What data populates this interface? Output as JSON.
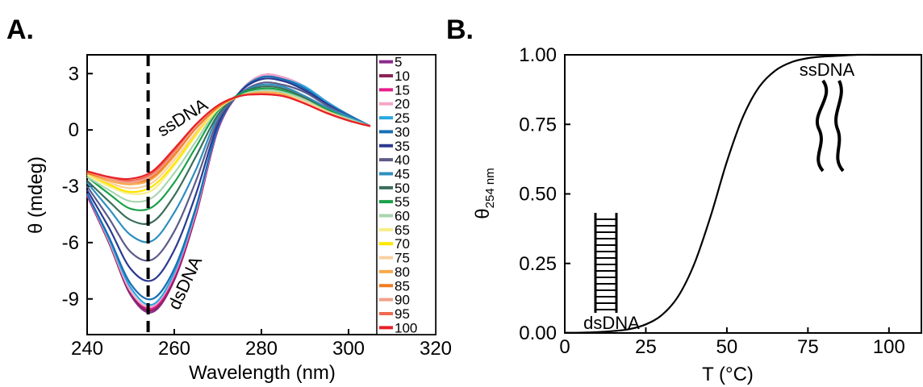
{
  "chart_data": [
    {
      "type": "line",
      "panel_label": "A.",
      "xlabel": "Wavelength (nm)",
      "ylabel": "θ (mdeg)",
      "xlim": [
        240,
        320
      ],
      "xticks": [
        240,
        260,
        280,
        300,
        320
      ],
      "ylim": [
        -10.9,
        4
      ],
      "yticks": [
        3,
        0,
        -3,
        -6,
        -9
      ],
      "vline": 254,
      "legend": "right",
      "annotations": [
        "ssDNA",
        "dsDNA"
      ],
      "x": [
        240,
        245,
        250,
        255,
        260,
        265,
        270,
        275,
        280,
        285,
        290,
        295,
        300,
        305
      ],
      "series": [
        {
          "name": "5",
          "color": "#8b2a8b",
          "values": [
            -3.5,
            -6,
            -8.8,
            -9.7,
            -8,
            -4.5,
            0,
            2,
            2.9,
            2.8,
            2.3,
            1.5,
            0.8,
            0.2
          ]
        },
        {
          "name": "10",
          "color": "#8b2355",
          "values": [
            -3.5,
            -6,
            -8.7,
            -9.6,
            -7.9,
            -4.5,
            0,
            2,
            2.9,
            2.8,
            2.3,
            1.5,
            0.8,
            0.2
          ]
        },
        {
          "name": "15",
          "color": "#e61e8c",
          "values": [
            -3.5,
            -5.9,
            -8.6,
            -9.5,
            -7.8,
            -4.4,
            0,
            2,
            2.9,
            2.8,
            2.3,
            1.5,
            0.8,
            0.2
          ]
        },
        {
          "name": "20",
          "color": "#f4a6c8",
          "values": [
            -3.4,
            -5.9,
            -8.6,
            -9.4,
            -7.7,
            -4.3,
            0.1,
            2,
            2.9,
            2.8,
            2.3,
            1.5,
            0.8,
            0.2
          ]
        },
        {
          "name": "25",
          "color": "#29a8e0",
          "values": [
            -3.4,
            -5.8,
            -8.4,
            -9.3,
            -7.6,
            -4.2,
            0.1,
            2,
            2.8,
            2.7,
            2.3,
            1.5,
            0.8,
            0.2
          ]
        },
        {
          "name": "30",
          "color": "#1a6fb5",
          "values": [
            -3.4,
            -5.7,
            -8.2,
            -9,
            -7.4,
            -4.1,
            0.1,
            2,
            2.8,
            2.7,
            2.2,
            1.4,
            0.8,
            0.2
          ]
        },
        {
          "name": "35",
          "color": "#2b3990",
          "values": [
            -3.2,
            -5.2,
            -7.4,
            -8,
            -6.4,
            -3.4,
            0.3,
            2,
            2.7,
            2.6,
            2.1,
            1.4,
            0.7,
            0.2
          ]
        },
        {
          "name": "40",
          "color": "#5c5c8a",
          "values": [
            -3,
            -4.7,
            -6.5,
            -6.9,
            -5.4,
            -2.7,
            0.5,
            1.9,
            2.5,
            2.4,
            2,
            1.3,
            0.7,
            0.2
          ]
        },
        {
          "name": "45",
          "color": "#2e8fbf",
          "values": [
            -2.8,
            -4.2,
            -5.6,
            -5.9,
            -4.4,
            -2.1,
            0.7,
            1.9,
            2.4,
            2.3,
            1.8,
            1.2,
            0.7,
            0.2
          ]
        },
        {
          "name": "50",
          "color": "#3b6e5a",
          "values": [
            -2.7,
            -3.8,
            -4.8,
            -4.9,
            -3.5,
            -1.4,
            0.8,
            1.9,
            2.3,
            2.2,
            1.7,
            1.1,
            0.6,
            0.2
          ]
        },
        {
          "name": "55",
          "color": "#1aa14a",
          "values": [
            -2.5,
            -3.4,
            -4.2,
            -4.1,
            -2.8,
            -0.9,
            1,
            1.9,
            2.2,
            2.1,
            1.6,
            1.1,
            0.6,
            0.2
          ]
        },
        {
          "name": "60",
          "color": "#a8d5b0",
          "values": [
            -2.5,
            -3.2,
            -3.8,
            -3.6,
            -2.3,
            -0.6,
            1.1,
            1.8,
            2.1,
            2,
            1.6,
            1,
            0.6,
            0.2
          ]
        },
        {
          "name": "65",
          "color": "#f7ee8a",
          "values": [
            -2.4,
            -3,
            -3.4,
            -3.2,
            -1.9,
            -0.3,
            1.1,
            1.8,
            2,
            1.9,
            1.5,
            1,
            0.5,
            0.2
          ]
        },
        {
          "name": "70",
          "color": "#ffe600",
          "values": [
            -2.3,
            -2.9,
            -3.3,
            -3,
            -1.8,
            -0.2,
            1.2,
            1.8,
            2,
            1.9,
            1.5,
            1,
            0.5,
            0.2
          ]
        },
        {
          "name": "75",
          "color": "#fbd0a0",
          "values": [
            -2.3,
            -2.8,
            -3.1,
            -2.8,
            -1.6,
            -0.1,
            1.2,
            1.8,
            2,
            1.9,
            1.5,
            1,
            0.5,
            0.2
          ]
        },
        {
          "name": "80",
          "color": "#f8a94a",
          "values": [
            -2.3,
            -2.7,
            -2.9,
            -2.6,
            -1.4,
            0.1,
            1.2,
            1.8,
            2,
            1.9,
            1.4,
            0.9,
            0.5,
            0.2
          ]
        },
        {
          "name": "85",
          "color": "#f07c22",
          "values": [
            -2.3,
            -2.6,
            -2.8,
            -2.5,
            -1.3,
            0.1,
            1.2,
            1.8,
            1.9,
            1.8,
            1.4,
            0.9,
            0.5,
            0.2
          ]
        },
        {
          "name": "90",
          "color": "#f2a08a",
          "values": [
            -2.2,
            -2.6,
            -2.8,
            -2.4,
            -1.2,
            0.2,
            1.3,
            1.8,
            1.9,
            1.8,
            1.4,
            0.9,
            0.5,
            0.2
          ]
        },
        {
          "name": "95",
          "color": "#ee6a50",
          "values": [
            -2.2,
            -2.5,
            -2.7,
            -2.3,
            -1.1,
            0.3,
            1.3,
            1.8,
            1.9,
            1.8,
            1.4,
            0.9,
            0.5,
            0.2
          ]
        },
        {
          "name": "100",
          "color": "#e8202a",
          "values": [
            -2.2,
            -2.5,
            -2.6,
            -2.2,
            -1,
            0.3,
            1.3,
            1.8,
            1.9,
            1.8,
            1.4,
            0.9,
            0.5,
            0.2
          ]
        }
      ]
    },
    {
      "type": "line",
      "panel_label": "B.",
      "xlabel": "T (°C)",
      "ylabel": "θ",
      "ylabel_sub": "254 nm",
      "xlim": [
        0,
        110
      ],
      "xticks": [
        0,
        25,
        50,
        75,
        100
      ],
      "ylim": [
        0,
        1
      ],
      "yticks": [
        {
          "value": 0,
          "label": "0.00"
        },
        {
          "value": 0.25,
          "label": "0.25"
        },
        {
          "value": 0.5,
          "label": "0.50"
        },
        {
          "value": 0.75,
          "label": "0.75"
        },
        {
          "value": 1,
          "label": "1.00"
        }
      ],
      "annotations": [
        "dsDNA",
        "ssDNA"
      ],
      "color": "#000000",
      "x": [
        0,
        5,
        10,
        15,
        20,
        25,
        30,
        35,
        40,
        45,
        50,
        55,
        60,
        65,
        70,
        75,
        80,
        85,
        90,
        95,
        100,
        105,
        110
      ],
      "values": [
        0.001,
        0.001,
        0.003,
        0.007,
        0.014,
        0.031,
        0.065,
        0.132,
        0.25,
        0.42,
        0.616,
        0.778,
        0.885,
        0.944,
        0.974,
        0.988,
        0.994,
        0.997,
        1,
        1,
        1,
        1,
        1
      ]
    }
  ]
}
